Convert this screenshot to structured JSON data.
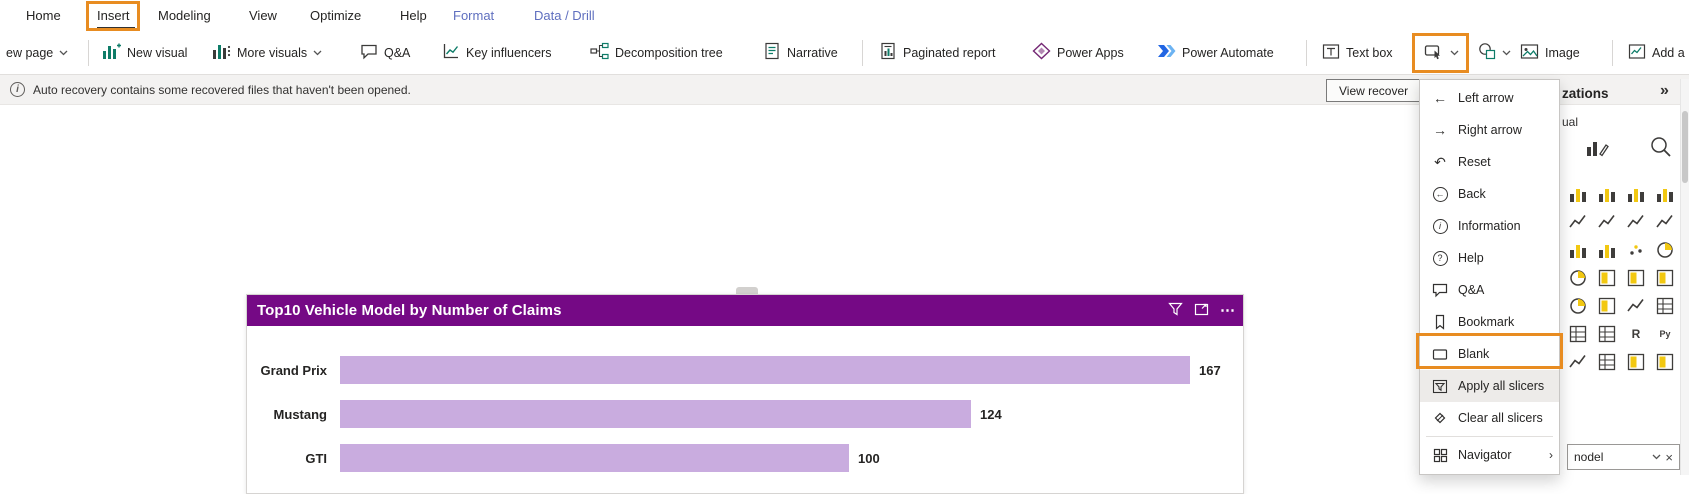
{
  "annotation_color": "#E88C21",
  "tabs": [
    "Home",
    "Insert",
    "Modeling",
    "View",
    "Optimize",
    "Help",
    "Format",
    "Data / Drill"
  ],
  "toolbar": [
    {
      "label": "ew page",
      "icon": "new-page",
      "chevron": true
    },
    {
      "label": "New visual",
      "icon": "new-visual"
    },
    {
      "label": "More visuals",
      "icon": "more-visuals",
      "chevron": true
    },
    {
      "label": "Q&A",
      "icon": "qa"
    },
    {
      "label": "Key influencers",
      "icon": "key-influencers"
    },
    {
      "label": "Decomposition tree",
      "icon": "decomposition-tree"
    },
    {
      "label": "Narrative",
      "icon": "narrative"
    },
    {
      "label": "Paginated report",
      "icon": "paginated-report"
    },
    {
      "label": "Power Apps",
      "icon": "power-apps"
    },
    {
      "label": "Power Automate",
      "icon": "power-automate"
    },
    {
      "label": "Text box",
      "icon": "text-box"
    },
    {
      "label": "",
      "icon": "buttons",
      "chevron": true
    },
    {
      "label": "",
      "icon": "shapes",
      "chevron": true
    },
    {
      "label": "Image",
      "icon": "image"
    },
    {
      "label": "Add a",
      "icon": "add-visual"
    }
  ],
  "notification": {
    "message": "Auto recovery contains some recovered files that haven't been opened.",
    "action": "View recover"
  },
  "buttons_menu": {
    "items": [
      {
        "label": "Left arrow",
        "icon": "left-arrow"
      },
      {
        "label": "Right arrow",
        "icon": "right-arrow"
      },
      {
        "label": "Reset",
        "icon": "reset"
      },
      {
        "label": "Back",
        "icon": "back"
      },
      {
        "label": "Information",
        "icon": "information"
      },
      {
        "label": "Help",
        "icon": "help"
      },
      {
        "label": "Q&A",
        "icon": "qa"
      },
      {
        "label": "Bookmark",
        "icon": "bookmark"
      },
      {
        "label": "Blank",
        "icon": "blank",
        "highlighted": true
      },
      {
        "label": "Apply all slicers",
        "icon": "apply-all-slicers",
        "hovered": true
      },
      {
        "label": "Clear all slicers",
        "icon": "clear-all-slicers"
      },
      {
        "label": "Navigator",
        "icon": "navigator",
        "submenu": true
      }
    ]
  },
  "viz_pane": {
    "title": "zations",
    "build_label": "ual",
    "field_pill": "nodel",
    "icons": [
      "stacked-bar-chart",
      "stacked-column-chart",
      "clustered-bar-chart",
      "clustered-column-chart",
      "line-chart",
      "area-chart",
      "stacked-area-chart",
      "ribbon-chart",
      "waterfall-chart",
      "funnel-chart",
      "scatter-chart",
      "pie-chart",
      "donut-chart",
      "treemap",
      "map",
      "filled-map",
      "gauge",
      "card",
      "kpi",
      "slicer",
      "table",
      "matrix",
      "r-script-visual",
      "python-visual",
      "key-influencers",
      "decomposition-tree",
      "qa-visual",
      "paginated-report"
    ]
  },
  "chart_data": {
    "type": "bar",
    "orientation": "horizontal",
    "title": "Top10 Vehicle Model by Number of Claims",
    "categories": [
      "Grand Prix",
      "Mustang",
      "GTI"
    ],
    "values": [
      167,
      124,
      100
    ],
    "value_labels": [
      "167",
      "124",
      "100"
    ],
    "bar_color": "#C9ACDF",
    "header_color": "#750985",
    "title_color": "#FFFFFF",
    "note": "top three of Top10 visible; list truncated by screenshot edge"
  }
}
